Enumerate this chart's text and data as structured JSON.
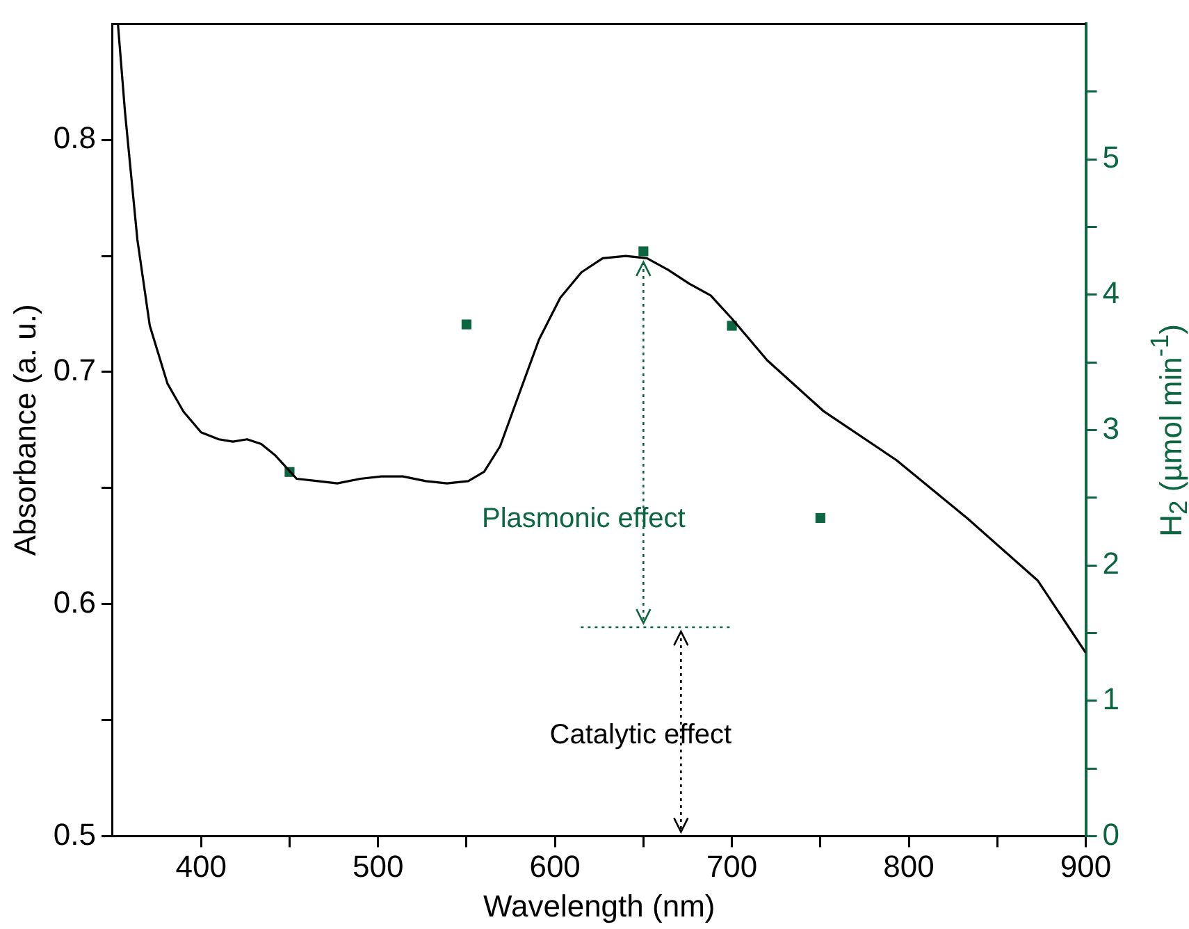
{
  "chart_data": {
    "type": "line",
    "xlabel": "Wavelength (nm)",
    "ylabel": "Absorbance (a. u.)",
    "y2label": "H$_{2}$ (µmol min$^{-1}$)",
    "xlim": [
      350,
      900
    ],
    "xticks": [
      400,
      {
        "value": 450,
        "label": null
      },
      500,
      {
        "value": 550,
        "label": null
      },
      600,
      {
        "value": 650,
        "label": null
      },
      700,
      {
        "value": 750,
        "label": null
      },
      800,
      {
        "value": 850,
        "label": null
      },
      900
    ],
    "ylim": [
      0.5,
      0.85
    ],
    "yticks": [
      0.5,
      {
        "value": 0.55,
        "label": null
      },
      0.6,
      {
        "value": 0.65,
        "label": null
      },
      0.7,
      {
        "value": 0.75,
        "label": null
      },
      0.8
    ],
    "y2lim": [
      0,
      6
    ],
    "y2ticks": [
      0,
      {
        "value": 0.5,
        "label": null
      },
      1,
      {
        "value": 1.5,
        "label": null
      },
      2,
      {
        "value": 2.5,
        "label": null
      },
      3,
      {
        "value": 3.5,
        "label": null
      },
      4,
      {
        "value": 4.5,
        "label": null
      },
      5,
      {
        "value": 5.5,
        "label": null
      }
    ],
    "grid": false,
    "series": [
      {
        "color": "#000000",
        "marker": "none",
        "x": [
          353,
          357,
          364,
          371,
          381,
          390,
          400,
          410,
          418,
          426,
          434,
          442,
          454,
          466,
          477,
          490,
          502,
          514,
          527,
          539,
          551,
          560,
          569,
          579,
          591,
          603,
          615,
          627,
          640,
          652,
          664,
          676,
          688,
          700,
          720,
          752,
          793,
          833,
          873,
          900
        ],
        "values": [
          0.85,
          0.812,
          0.757,
          0.72,
          0.695,
          0.683,
          0.674,
          0.671,
          0.67,
          0.671,
          0.669,
          0.664,
          0.654,
          0.653,
          0.652,
          0.654,
          0.655,
          0.655,
          0.653,
          0.652,
          0.653,
          0.657,
          0.668,
          0.689,
          0.714,
          0.732,
          0.743,
          0.749,
          0.75,
          0.749,
          0.744,
          0.738,
          0.733,
          0.723,
          0.705,
          0.683,
          0.662,
          0.637,
          0.61,
          0.579
        ]
      },
      {
        "type": "scatter",
        "axis": "y2",
        "color": "#0b6641",
        "marker": "square",
        "x": [
          450,
          550,
          650,
          700,
          750
        ],
        "values": [
          2.69,
          3.78,
          4.32,
          3.77,
          2.35
        ]
      }
    ],
    "ref_lines": [
      {
        "axis": "y",
        "value": 0.59,
        "color": "#0b6641",
        "line_style": "dotted"
      }
    ],
    "annotations": [
      "Plasmonic effect",
      "Catalytic effect"
    ]
  }
}
